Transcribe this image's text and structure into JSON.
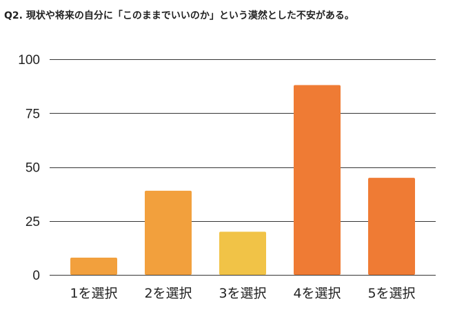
{
  "chart_data": {
    "type": "bar",
    "title": "Q2. 現状や将来の自分に「このままでいいのか」という漠然とした不安がある。",
    "xlabel": "",
    "ylabel": "",
    "categories": [
      "1を選択",
      "2を選択",
      "3を選択",
      "4を選択",
      "5を選択"
    ],
    "values": [
      8,
      39,
      20,
      88,
      45
    ],
    "bar_colors": [
      "#f2a03d",
      "#f2a03d",
      "#f1c347",
      "#ef7b34",
      "#ef7b34"
    ],
    "ylim": [
      0,
      100
    ],
    "yticks": [
      0,
      25,
      50,
      75,
      100
    ],
    "grid": true,
    "legend": "none"
  }
}
